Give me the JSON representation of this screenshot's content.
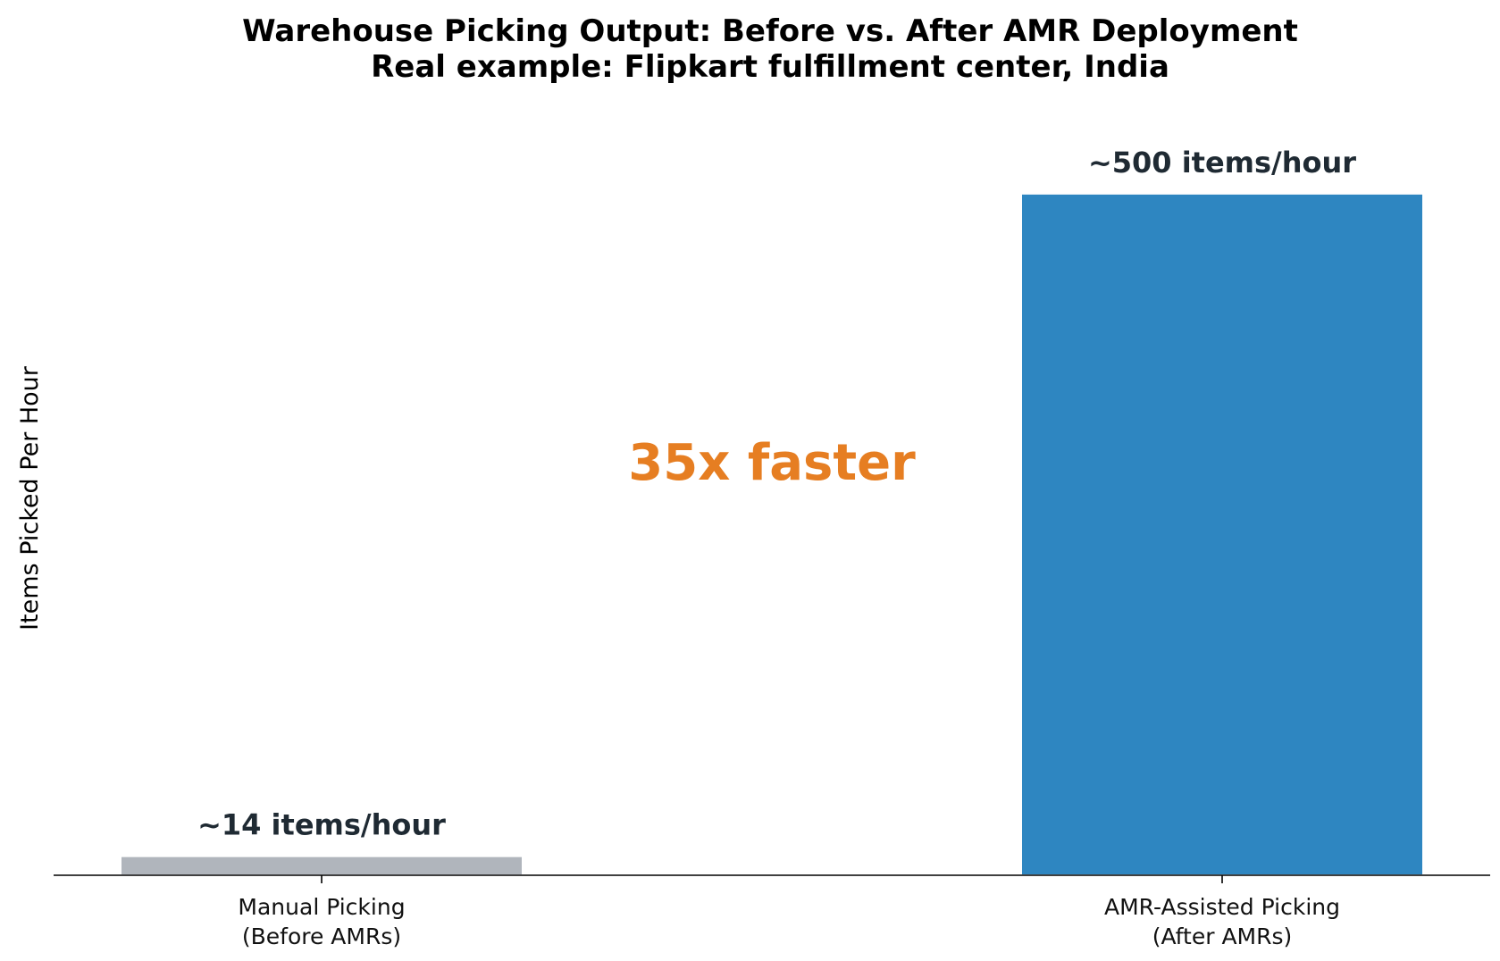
{
  "chart_data": {
    "type": "bar",
    "title": "Warehouse Picking Output: Before vs. After AMR Deployment",
    "subtitle": "Real example: Flipkart fulfillment center, India",
    "xlabel": "",
    "ylabel": "Items Picked Per Hour",
    "categories": [
      [
        "Manual Picking",
        "(Before AMRs)"
      ],
      [
        "AMR-Assisted Picking",
        "(After AMRs)"
      ]
    ],
    "values": [
      14,
      500
    ],
    "data_labels": [
      "~14 items/hour",
      "~500 items/hour"
    ],
    "colors": [
      "#b0b5bc",
      "#2e86c1"
    ],
    "ylim": [
      0,
      570
    ],
    "grid": false,
    "annotation": {
      "text": "35x faster",
      "color": "#e67e22"
    }
  }
}
